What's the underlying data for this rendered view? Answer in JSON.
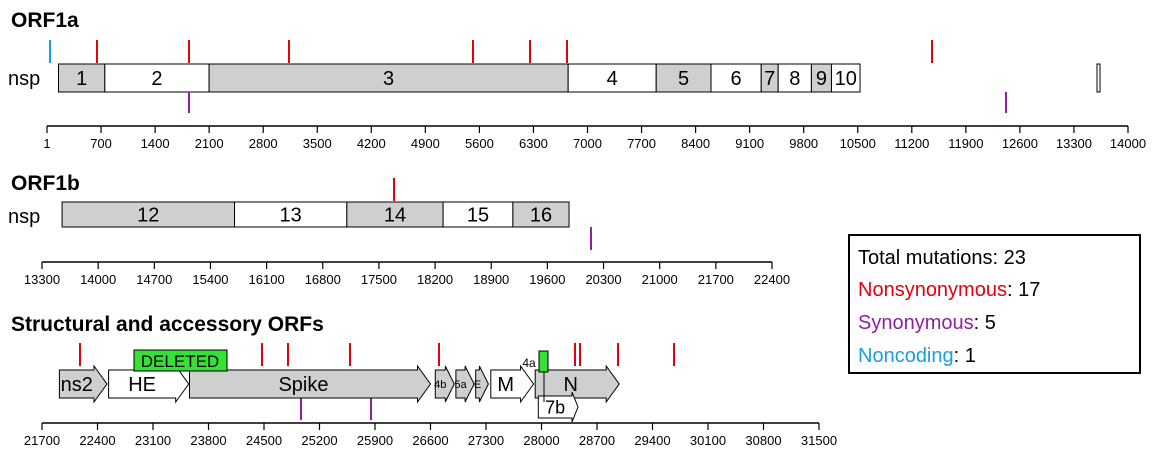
{
  "orf1a": {
    "title": "ORF1a",
    "prefix": "nsp",
    "axis_ticks": [
      "1",
      "700",
      "1400",
      "2100",
      "2800",
      "3500",
      "4200",
      "4900",
      "5600",
      "6300",
      "7000",
      "7700",
      "8400",
      "9100",
      "9800",
      "10500",
      "11200",
      "11900",
      "12600",
      "13300",
      "14000"
    ],
    "segments": [
      {
        "label": "1",
        "start": 150,
        "end": 750,
        "fill": "gray"
      },
      {
        "label": "2",
        "start": 750,
        "end": 2100,
        "fill": "white"
      },
      {
        "label": "3",
        "start": 2100,
        "end": 6750,
        "fill": "gray"
      },
      {
        "label": "4",
        "start": 6750,
        "end": 7890,
        "fill": "white"
      },
      {
        "label": "5",
        "start": 7890,
        "end": 8600,
        "fill": "gray"
      },
      {
        "label": "6",
        "start": 8600,
        "end": 9250,
        "fill": "white"
      },
      {
        "label": "7",
        "start": 9250,
        "end": 9470,
        "fill": "gray"
      },
      {
        "label": "8",
        "start": 9470,
        "end": 9900,
        "fill": "white"
      },
      {
        "label": "9",
        "start": 9900,
        "end": 10160,
        "fill": "gray"
      },
      {
        "label": "10",
        "start": 10160,
        "end": 10530,
        "fill": "white"
      }
    ]
  },
  "orf1b": {
    "title": "ORF1b",
    "prefix": "nsp",
    "axis_ticks": [
      "13300",
      "14000",
      "14700",
      "15400",
      "16100",
      "16800",
      "17500",
      "18200",
      "18900",
      "19600",
      "20300",
      "21000",
      "21700",
      "22400"
    ],
    "segments": [
      {
        "label": "12",
        "start": 13550,
        "end": 15700,
        "fill": "gray"
      },
      {
        "label": "13",
        "start": 15700,
        "end": 17100,
        "fill": "white"
      },
      {
        "label": "14",
        "start": 17100,
        "end": 18300,
        "fill": "gray"
      },
      {
        "label": "15",
        "start": 18300,
        "end": 19170,
        "fill": "white"
      },
      {
        "label": "16",
        "start": 19170,
        "end": 19870,
        "fill": "gray"
      }
    ]
  },
  "structural": {
    "title": "Structural and accessory ORFs",
    "axis_ticks": [
      "21700",
      "22400",
      "23100",
      "23800",
      "24500",
      "25200",
      "25900",
      "26600",
      "27300",
      "28000",
      "28700",
      "29400",
      "30100",
      "30800",
      "31500"
    ],
    "genes": [
      {
        "label": "ns2",
        "start": 21920,
        "end": 22520,
        "row": 0,
        "fill": "gray"
      },
      {
        "label": "HE",
        "start": 22540,
        "end": 23550,
        "row": 0,
        "fill": "white"
      },
      {
        "label": "Spike",
        "start": 23560,
        "end": 26600,
        "row": 0,
        "fill": "gray"
      },
      {
        "label": "4b",
        "start": 26660,
        "end": 26900,
        "row": 0,
        "fill": "gray"
      },
      {
        "label": "5a",
        "start": 26920,
        "end": 27150,
        "row": 0,
        "fill": "gray"
      },
      {
        "label": "E",
        "start": 27170,
        "end": 27330,
        "row": 0,
        "fill": "gray"
      },
      {
        "label": "M",
        "start": 27360,
        "end": 27900,
        "row": 0,
        "fill": "white"
      },
      {
        "label": "N",
        "start": 27920,
        "end": 28980,
        "row": 0,
        "fill": "gray"
      },
      {
        "label": "7b",
        "start": 27960,
        "end": 28460,
        "row": 1,
        "fill": "white"
      }
    ],
    "deleted_label": "DELETED",
    "orf4a_label": "4a"
  },
  "legend": {
    "total_label": "Total mutations",
    "total_value": "23",
    "entries": [
      {
        "label": "Nonsynonymous",
        "value": "17",
        "color": "#e3000f"
      },
      {
        "label": "Synonymous",
        "value": "5",
        "color": "#8e1fa3"
      },
      {
        "label": "Noncoding",
        "value": "1",
        "color": "#1a9ee0"
      }
    ]
  },
  "colors": {
    "nonsynonymous": "#e3000f",
    "synonymous": "#8e1fa3",
    "noncoding": "#1a9ee0",
    "gray_fill": "#cfcfcf",
    "white_fill": "#ffffff",
    "deleted_fill": "#35e135"
  }
}
